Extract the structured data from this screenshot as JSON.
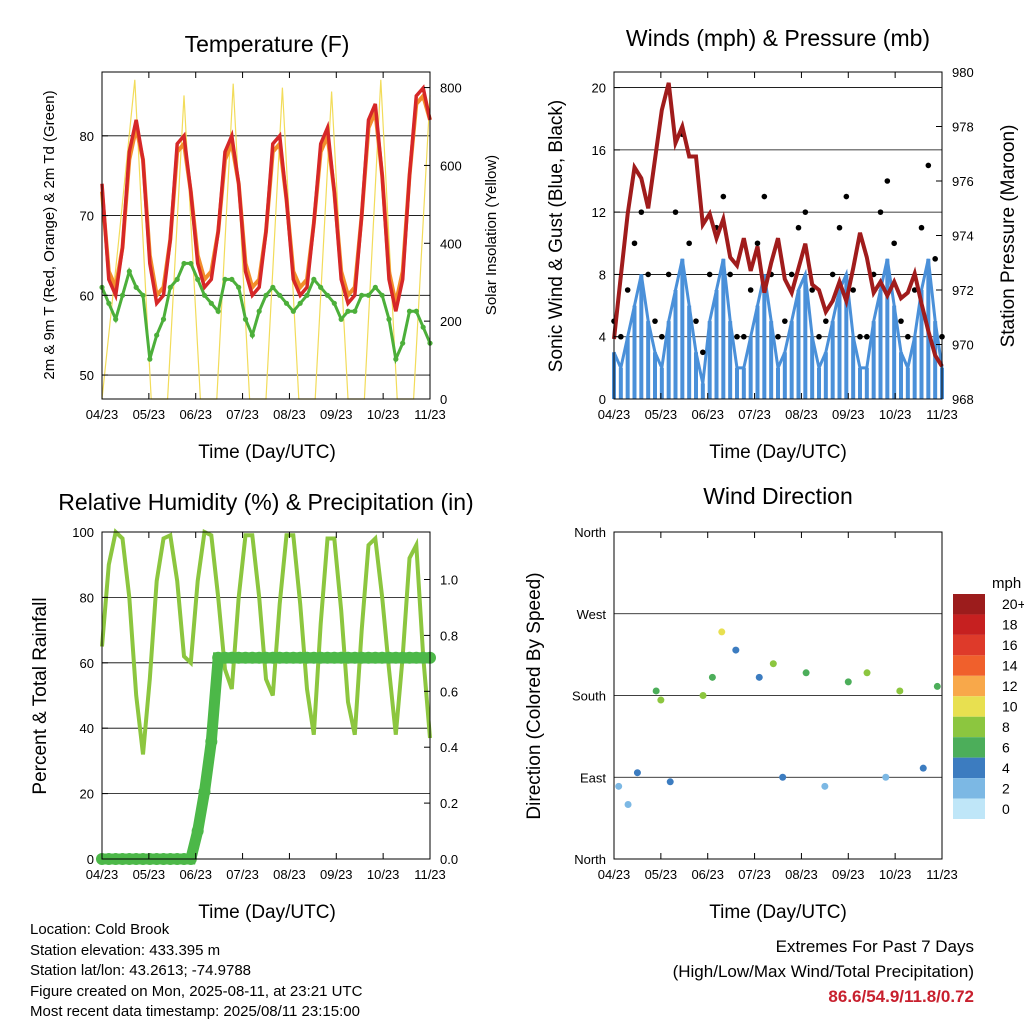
{
  "chart_data": [
    {
      "type": "line",
      "title": "Temperature (F)",
      "xlabel": "Time (Day/UTC)",
      "ylabel": "2m & 9m T (Red, Orange) & 2m Td (Green)",
      "ylabel_right": "Solar Insolation (Yellow)",
      "x_ticks": [
        "04/23",
        "05/23",
        "06/23",
        "07/23",
        "08/23",
        "09/23",
        "10/23",
        "11/23"
      ],
      "xlim_days": [
        0,
        7
      ],
      "ylim": [
        47,
        88
      ],
      "yticks": [
        "50",
        "60",
        "70",
        "80"
      ],
      "ylim_right": [
        0,
        840
      ],
      "yticks_right": [
        "0",
        "200",
        "400",
        "600",
        "800"
      ],
      "grid": true,
      "series": [
        {
          "color": "#d62728",
          "values": [
            74,
            62,
            60,
            66,
            78,
            82,
            77,
            64,
            59,
            60,
            67,
            79,
            80,
            73,
            64,
            61,
            62,
            68,
            78,
            80,
            74,
            63,
            60,
            61,
            68,
            79,
            80,
            72,
            62,
            60,
            61,
            69,
            79,
            81,
            73,
            62,
            59,
            60,
            70,
            82,
            84,
            75,
            62,
            58,
            62,
            75,
            85,
            86,
            82
          ]
        },
        {
          "color": "#f28e2b",
          "values": [
            73,
            63,
            61,
            66,
            77,
            81,
            77,
            65,
            60,
            61,
            67,
            78,
            79,
            73,
            65,
            62,
            63,
            68,
            77,
            79,
            74,
            64,
            61,
            62,
            68,
            78,
            79,
            72,
            63,
            61,
            62,
            69,
            78,
            80,
            73,
            63,
            60,
            61,
            70,
            81,
            83,
            75,
            63,
            59,
            63,
            75,
            84,
            85,
            82
          ]
        },
        {
          "color": "#4caf3a",
          "values": [
            61,
            59,
            57,
            60,
            63,
            61,
            60,
            52,
            55,
            57,
            61,
            62,
            64,
            64,
            62,
            60,
            59,
            58,
            62,
            62,
            61,
            57,
            55,
            58,
            60,
            61,
            60,
            59,
            58,
            59,
            60,
            62,
            61,
            60,
            59,
            57,
            58,
            58,
            60,
            60,
            61,
            60,
            57,
            52,
            54,
            58,
            58,
            56,
            54
          ]
        },
        {
          "color": "#f2dc5a",
          "values": [
            0,
            400,
            820,
            0,
            0,
            780,
            0,
            0,
            810,
            0,
            0,
            800,
            0,
            0,
            790,
            0,
            0,
            820,
            0,
            0,
            780
          ]
        }
      ]
    },
    {
      "type": "scatter",
      "title": "Winds (mph) & Pressure (mb)",
      "xlabel": "Time (Day/UTC)",
      "ylabel": "Sonic Wind & Gust (Blue, Black)",
      "ylabel_right": "Station Pressure (Maroon)",
      "x_ticks": [
        "04/23",
        "05/23",
        "06/23",
        "07/23",
        "08/23",
        "09/23",
        "10/23",
        "11/23"
      ],
      "ylim": [
        0,
        21
      ],
      "yticks": [
        "0",
        "4",
        "8",
        "12",
        "16",
        "20"
      ],
      "ylim_right": [
        968,
        980
      ],
      "yticks_right": [
        "968",
        "970",
        "972",
        "974",
        "976",
        "978",
        "980"
      ],
      "grid": true,
      "series": [
        {
          "color": "#4a90d9",
          "values": [
            3,
            2,
            4,
            6,
            8,
            5,
            3,
            2,
            5,
            7,
            9,
            6,
            3,
            1,
            5,
            7,
            9,
            5,
            2,
            2,
            4,
            6,
            8,
            5,
            2,
            3,
            5,
            7,
            8,
            4,
            2,
            3,
            5,
            7,
            8,
            4,
            2,
            2,
            5,
            7,
            9,
            6,
            3,
            2,
            4,
            7,
            9,
            5,
            2
          ]
        },
        {
          "color": "#000000",
          "values": [
            5,
            4,
            7,
            10,
            12,
            8,
            5,
            4,
            8,
            12,
            17,
            10,
            5,
            3,
            8,
            11,
            13,
            8,
            4,
            4,
            7,
            10,
            13,
            8,
            4,
            5,
            8,
            11,
            12,
            7,
            4,
            5,
            8,
            11,
            13,
            7,
            4,
            4,
            8,
            12,
            14,
            10,
            5,
            4,
            7,
            11,
            15,
            9,
            4
          ]
        },
        {
          "color": "#a01c1c",
          "values": [
            970.2,
            972.5,
            974.8,
            976.5,
            976.1,
            975.0,
            976.8,
            978.6,
            979.6,
            977.4,
            978.0,
            976.9,
            976.9,
            974.4,
            974.8,
            973.9,
            974.6,
            973.2,
            972.9,
            973.9,
            972.7,
            973.6,
            971.9,
            973.0,
            973.9,
            972.4,
            971.9,
            972.8,
            973.7,
            972.2,
            972.0,
            971.2,
            971.6,
            972.3,
            971.6,
            972.8,
            974.1,
            973.2,
            971.9,
            972.3,
            971.8,
            972.3,
            971.7,
            971.9,
            972.6,
            971.5,
            970.5,
            969.6,
            969.2
          ]
        }
      ]
    },
    {
      "type": "line",
      "title": "Relative Humidity (%) & Precipitation (in)",
      "xlabel": "Time (Day/UTC)",
      "ylabel": "Percent & Total Rainfall",
      "x_ticks": [
        "04/23",
        "05/23",
        "06/23",
        "07/23",
        "08/23",
        "09/23",
        "10/23",
        "11/23"
      ],
      "ylim": [
        0,
        100
      ],
      "yticks": [
        "0",
        "20",
        "40",
        "60",
        "80",
        "100"
      ],
      "ylim_right": [
        0,
        1.17
      ],
      "yticks_right": [
        "0.0",
        "0.2",
        "0.4",
        "0.6",
        "0.8",
        "1.0"
      ],
      "grid": true,
      "series": [
        {
          "color": "#8cc63f",
          "values": [
            65,
            90,
            100,
            98,
            80,
            50,
            32,
            55,
            85,
            98,
            99,
            85,
            62,
            60,
            85,
            100,
            99,
            80,
            58,
            52,
            80,
            99,
            99,
            80,
            55,
            50,
            78,
            99,
            99,
            78,
            52,
            38,
            72,
            98,
            98,
            76,
            48,
            38,
            70,
            96,
            98,
            80,
            58,
            38,
            62,
            92,
            96,
            62,
            37
          ]
        },
        {
          "color": "#4cb848",
          "values": [
            0,
            0,
            0,
            0,
            0,
            0,
            0,
            0,
            0,
            0,
            0,
            0,
            0,
            0,
            0.1,
            0.24,
            0.42,
            0.72,
            0.72,
            0.72,
            0.72,
            0.72,
            0.72,
            0.72,
            0.72,
            0.72,
            0.72,
            0.72,
            0.72,
            0.72,
            0.72,
            0.72,
            0.72,
            0.72,
            0.72,
            0.72,
            0.72,
            0.72,
            0.72,
            0.72,
            0.72,
            0.72,
            0.72,
            0.72,
            0.72,
            0.72,
            0.72,
            0.72,
            0.72
          ]
        }
      ]
    },
    {
      "type": "scatter",
      "title": "Wind Direction",
      "xlabel": "Time (Day/UTC)",
      "ylabel": "Direction (Colored By Speed)",
      "x_ticks": [
        "04/23",
        "05/23",
        "06/23",
        "07/23",
        "08/23",
        "09/23",
        "10/23",
        "11/23"
      ],
      "yticks": [
        "North",
        "East",
        "South",
        "West",
        "North"
      ],
      "ylim": [
        0,
        360
      ],
      "grid": true,
      "legend_title": "mph",
      "legend_labels": [
        "20+",
        "18",
        "16",
        "14",
        "12",
        "10",
        "8",
        "6",
        "4",
        "2",
        "0"
      ],
      "legend_colors": [
        "#9c1c1c",
        "#c62020",
        "#de3a2a",
        "#f0602c",
        "#f8a84a",
        "#e8e050",
        "#8cc63f",
        "#4cae5a",
        "#3c7cc0",
        "#7cb8e4",
        "#bfe6f8"
      ],
      "legend_placement": "right",
      "points": [
        {
          "x": 0.1,
          "dir": 80,
          "speed": 2
        },
        {
          "x": 0.3,
          "dir": 60,
          "speed": 1
        },
        {
          "x": 0.5,
          "dir": 95,
          "speed": 3
        },
        {
          "x": 0.9,
          "dir": 185,
          "speed": 6
        },
        {
          "x": 1.0,
          "dir": 175,
          "speed": 8
        },
        {
          "x": 1.2,
          "dir": 85,
          "speed": 4
        },
        {
          "x": 1.9,
          "dir": 180,
          "speed": 7
        },
        {
          "x": 2.1,
          "dir": 200,
          "speed": 5
        },
        {
          "x": 2.3,
          "dir": 250,
          "speed": 9
        },
        {
          "x": 2.6,
          "dir": 230,
          "speed": 4
        },
        {
          "x": 3.1,
          "dir": 200,
          "speed": 3
        },
        {
          "x": 3.4,
          "dir": 215,
          "speed": 7
        },
        {
          "x": 3.6,
          "dir": 90,
          "speed": 3
        },
        {
          "x": 4.1,
          "dir": 205,
          "speed": 6
        },
        {
          "x": 4.5,
          "dir": 80,
          "speed": 2
        },
        {
          "x": 5.0,
          "dir": 195,
          "speed": 6
        },
        {
          "x": 5.4,
          "dir": 205,
          "speed": 7
        },
        {
          "x": 5.8,
          "dir": 90,
          "speed": 2
        },
        {
          "x": 6.1,
          "dir": 185,
          "speed": 7
        },
        {
          "x": 6.6,
          "dir": 100,
          "speed": 3
        },
        {
          "x": 6.9,
          "dir": 190,
          "speed": 5
        }
      ]
    }
  ],
  "info": {
    "location": "Location: Cold Brook",
    "elevation": "Station elevation: 433.395 m",
    "latlon": "Station lat/lon: 43.2613; -74.9788",
    "created": "Figure created on Mon, 2025-08-11, at 23:21 UTC",
    "recent": "Most recent data timestamp: 2025/08/11 23:15:00"
  },
  "extremes": {
    "title": "Extremes For Past 7 Days",
    "subtitle": "(High/Low/Max Wind/Total Precipitation)",
    "values": "86.6/54.9/11.8/0.72"
  }
}
